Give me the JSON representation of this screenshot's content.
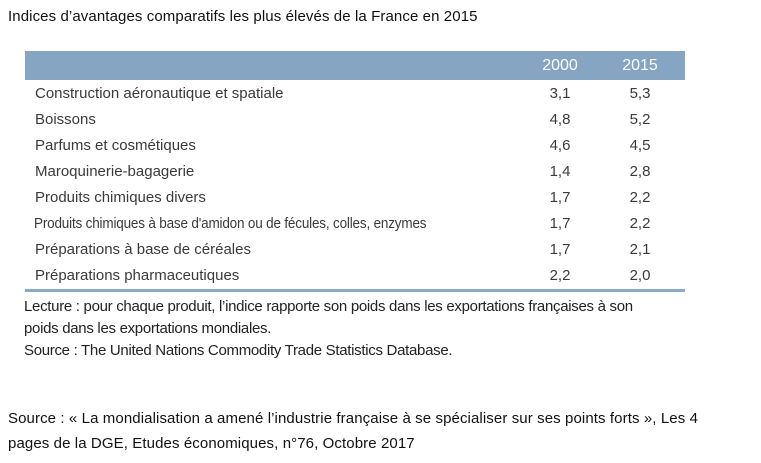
{
  "title": "Indices d’avantages comparatifs les plus élevés de la France en 2015",
  "table": {
    "columns": [
      "2000",
      "2015"
    ],
    "rows": [
      {
        "label": "Construction aéronautique et spatiale",
        "v2000": "3,1",
        "v2015": "5,3"
      },
      {
        "label": "Boissons",
        "v2000": "4,8",
        "v2015": "5,2"
      },
      {
        "label": "Parfums et cosmétiques",
        "v2000": "4,6",
        "v2015": "4,5"
      },
      {
        "label": "Maroquinerie-bagagerie",
        "v2000": "1,4",
        "v2015": "2,8"
      },
      {
        "label": "Produits chimiques divers",
        "v2000": "1,7",
        "v2015": "2,2"
      },
      {
        "label": "Produits chimiques à base d'amidon ou de fécules, colles, enzymes",
        "v2000": "1,7",
        "v2015": "2,2"
      },
      {
        "label": "Préparations à base de céréales",
        "v2000": "1,7",
        "v2015": "2,1"
      },
      {
        "label": "Préparations pharmaceutiques",
        "v2000": "2,2",
        "v2015": "2,0"
      }
    ]
  },
  "notes": {
    "lines": [
      "Lecture : pour chaque produit, l’indice rapporte son poids dans les exportations françaises à son",
      "poids dans les exportations mondiales.",
      "Source : The United Nations Commodity Trade Statistics Database."
    ]
  },
  "footer": {
    "lines": [
      "Source : «  La mondialisation a amené l’industrie française à se spécialiser sur ses points forts », Les 4",
      "pages de  la DGE, Etudes économiques, n°76, Octobre 2017"
    ]
  },
  "colors": {
    "header_bg": "#85a5c3",
    "bottom_rule": "#8aabc8",
    "header_text": "#ffffff",
    "body_text": "#3a3a3a"
  },
  "chart_data": {
    "type": "table",
    "title": "Indices d’avantages comparatifs les plus élevés de la France en 2015",
    "categories": [
      "Construction aéronautique et spatiale",
      "Boissons",
      "Parfums et cosmétiques",
      "Maroquinerie-bagagerie",
      "Produits chimiques divers",
      "Produits chimiques à base d'amidon ou de fécules, colles, enzymes",
      "Préparations à base de céréales",
      "Préparations pharmaceutiques"
    ],
    "series": [
      {
        "name": "2000",
        "values": [
          3.1,
          4.8,
          4.6,
          1.4,
          1.7,
          1.7,
          1.7,
          2.2
        ]
      },
      {
        "name": "2015",
        "values": [
          5.3,
          5.2,
          4.5,
          2.8,
          2.2,
          2.2,
          2.1,
          2.0
        ]
      }
    ]
  }
}
